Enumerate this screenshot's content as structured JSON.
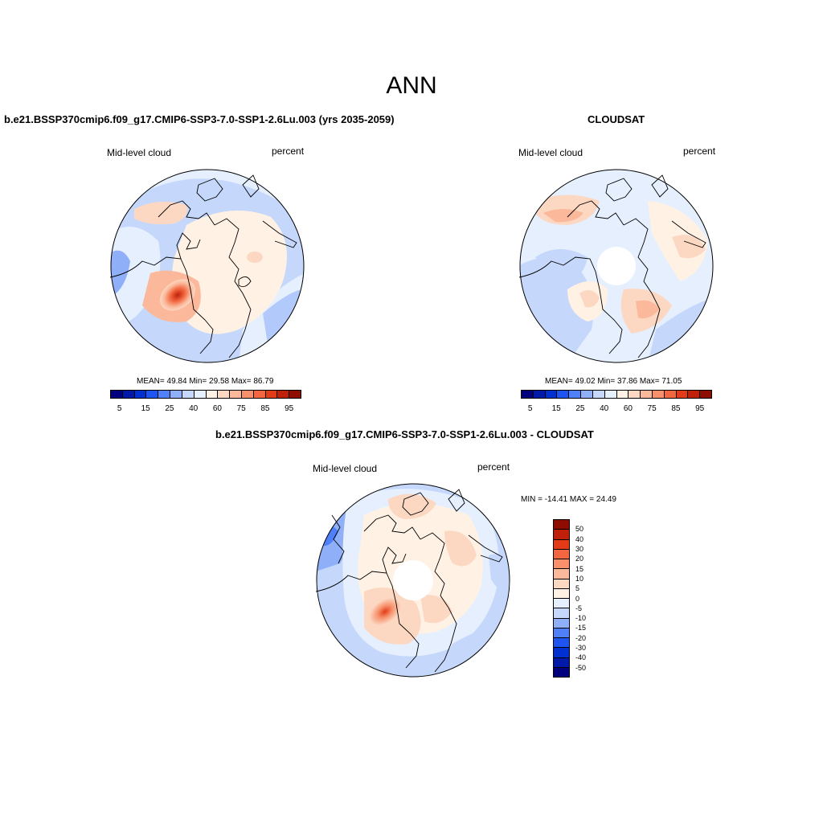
{
  "figure": {
    "season": "ANN"
  },
  "panels": [
    {
      "id": "model",
      "title": "b.e21.BSSP370cmip6.f09_g17.CMIP6-SSP3-7.0-SSP1-2.6Lu.003 (yrs 2035-2059)",
      "variable": "Mid-level cloud",
      "units": "percent",
      "stats": "MEAN=  49.84  Min=  29.58  Max=  86.79"
    },
    {
      "id": "obs",
      "title": "CLOUDSAT",
      "variable": "Mid-level cloud",
      "units": "percent",
      "stats": "MEAN=  49.02  Min=  37.86  Max=  71.05"
    },
    {
      "id": "diff",
      "title": "b.e21.BSSP370cmip6.f09_g17.CMIP6-SSP3-7.0-SSP1-2.6Lu.003 - CLOUDSAT",
      "variable": "Mid-level cloud",
      "units": "percent",
      "stats": "MIN = -14.41 MAX =  24.49"
    }
  ],
  "colorbar_abs": {
    "colors": [
      "#00007f",
      "#0019a8",
      "#0030d0",
      "#1e55f0",
      "#4f80f8",
      "#8fb0f8",
      "#c5d8fb",
      "#e5effe",
      "#fff2e5",
      "#fcd8c2",
      "#fbb89a",
      "#f7906b",
      "#f2673f",
      "#e33a17",
      "#c0200a",
      "#8e0c00"
    ],
    "labels": [
      "5",
      "15",
      "25",
      "40",
      "60",
      "75",
      "85",
      "95"
    ]
  },
  "colorbar_diff": {
    "colors": [
      "#8e0c00",
      "#c0200a",
      "#e33a17",
      "#f2673f",
      "#f7906b",
      "#fbb89a",
      "#fcd8c2",
      "#fff2e5",
      "#e5effe",
      "#c5d8fb",
      "#8fb0f8",
      "#4f80f8",
      "#1e55f0",
      "#0030d0",
      "#0019a8",
      "#00007f"
    ],
    "labels": [
      "50",
      "40",
      "30",
      "20",
      "15",
      "10",
      "5",
      "0",
      "-5",
      "-10",
      "-15",
      "-20",
      "-30",
      "-40",
      "-50"
    ]
  }
}
